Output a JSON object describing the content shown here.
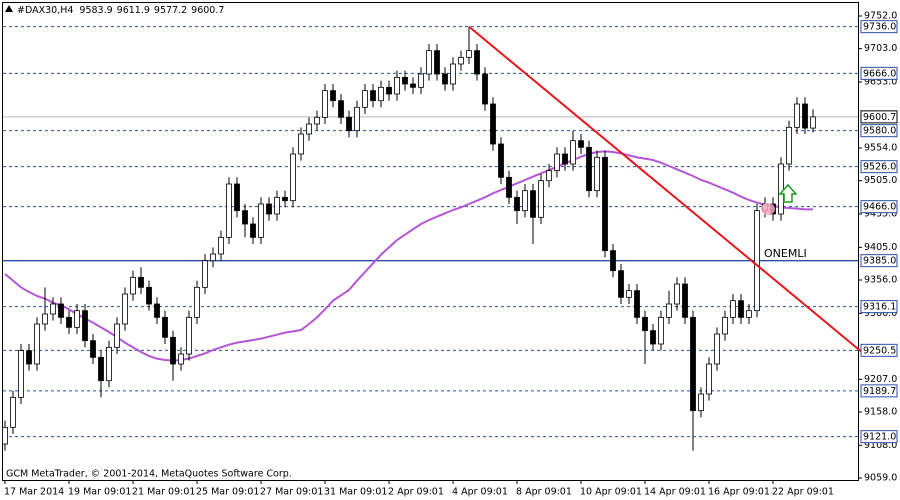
{
  "chart_data": {
    "type": "candlestick",
    "symbol": "#DAX30,H4",
    "footer": "GCM MetaTrader, © 2001-2014, MetaQuotes Software Corp.",
    "annotation": "ONEMLI",
    "categories": [
      "17 Mar 2014",
      null,
      null,
      null,
      null,
      null,
      null,
      null,
      "19 Mar 09:01",
      null,
      null,
      null,
      null,
      null,
      null,
      null,
      "21 Mar 09:01",
      null,
      null,
      null,
      null,
      null,
      null,
      null,
      "25 Mar 09:01",
      null,
      null,
      null,
      null,
      null,
      null,
      null,
      "27 Mar 09:01",
      null,
      null,
      null,
      null,
      null,
      null,
      null,
      "31 Mar 09:01",
      null,
      null,
      null,
      null,
      null,
      null,
      null,
      "2 Apr 09:01",
      null,
      null,
      null,
      null,
      null,
      null,
      null,
      "4 Apr 09:01",
      null,
      null,
      null,
      null,
      null,
      null,
      null,
      "8 Apr 09:01",
      null,
      null,
      null,
      null,
      null,
      null,
      null,
      "10 Apr 09:01",
      null,
      null,
      null,
      null,
      null,
      null,
      null,
      "14 Apr 09:01",
      null,
      null,
      null,
      null,
      null,
      null,
      null,
      "16 Apr 09:01",
      null,
      null,
      null,
      null,
      null,
      null,
      null,
      "22 Apr 09:01",
      null,
      null,
      null,
      null,
      null
    ],
    "open": [
      9110,
      9135,
      9180,
      9250,
      9230,
      9290,
      9305,
      9320,
      9300,
      9285,
      9310,
      9265,
      9240,
      9205,
      9255,
      9290,
      9335,
      9360,
      9345,
      9320,
      9300,
      9270,
      9230,
      9245,
      9300,
      9345,
      9385,
      9395,
      9420,
      9500,
      9460,
      9440,
      9420,
      9470,
      9455,
      9480,
      9475,
      9545,
      9575,
      9590,
      9600,
      9640,
      9625,
      9600,
      9580,
      9615,
      9640,
      9625,
      9645,
      9635,
      9660,
      9650,
      9645,
      9665,
      9700,
      9665,
      9650,
      9680,
      9690,
      9700,
      9665,
      9620,
      9560,
      9510,
      9480,
      9460,
      9490,
      9450,
      9505,
      9520,
      9545,
      9530,
      9565,
      9555,
      9490,
      9540,
      9400,
      9370,
      9330,
      9340,
      9300,
      9280,
      9260,
      9300,
      9320,
      9350,
      9300,
      9160,
      9185,
      9230,
      9275,
      9300,
      9325,
      9300,
      9310,
      9460,
      9470,
      9455,
      9530,
      9585,
      9620,
      9583.9
    ],
    "high": [
      9145,
      9190,
      9260,
      9260,
      9300,
      9345,
      9330,
      9330,
      9310,
      9320,
      9320,
      9275,
      9250,
      9265,
      9300,
      9345,
      9370,
      9375,
      9355,
      9330,
      9310,
      9280,
      9255,
      9310,
      9355,
      9395,
      9405,
      9430,
      9510,
      9510,
      9470,
      9450,
      9480,
      9480,
      9490,
      9490,
      9555,
      9585,
      9600,
      9610,
      9650,
      9650,
      9635,
      9610,
      9625,
      9650,
      9650,
      9655,
      9655,
      9670,
      9670,
      9660,
      9675,
      9710,
      9710,
      9675,
      9690,
      9700,
      9736,
      9710,
      9675,
      9630,
      9570,
      9520,
      9490,
      9500,
      9500,
      9515,
      9530,
      9555,
      9555,
      9580,
      9575,
      9565,
      9550,
      9550,
      9410,
      9380,
      9350,
      9350,
      9310,
      9290,
      9310,
      9340,
      9360,
      9360,
      9310,
      9195,
      9240,
      9285,
      9310,
      9335,
      9335,
      9320,
      9470,
      9480,
      9480,
      9540,
      9595,
      9630,
      9630,
      9611.9
    ],
    "low": [
      9100,
      9125,
      9170,
      9220,
      9220,
      9280,
      9295,
      9290,
      9275,
      9275,
      9255,
      9230,
      9180,
      9195,
      9245,
      9280,
      9325,
      9335,
      9310,
      9290,
      9260,
      9205,
      9220,
      9235,
      9290,
      9335,
      9375,
      9385,
      9410,
      9450,
      9420,
      9410,
      9410,
      9445,
      9445,
      9465,
      9465,
      9535,
      9565,
      9580,
      9590,
      9615,
      9590,
      9570,
      9570,
      9605,
      9615,
      9615,
      9625,
      9625,
      9640,
      9635,
      9635,
      9655,
      9655,
      9640,
      9640,
      9670,
      9680,
      9655,
      9610,
      9550,
      9500,
      9470,
      9440,
      9450,
      9410,
      9440,
      9495,
      9510,
      9520,
      9520,
      9545,
      9480,
      9480,
      9390,
      9360,
      9320,
      9320,
      9290,
      9230,
      9250,
      9250,
      9290,
      9310,
      9290,
      9100,
      9150,
      9175,
      9220,
      9265,
      9290,
      9290,
      9290,
      9300,
      9450,
      9445,
      9445,
      9520,
      9575,
      9575,
      9577.2
    ],
    "close": [
      9135,
      9180,
      9250,
      9230,
      9290,
      9305,
      9320,
      9300,
      9285,
      9310,
      9265,
      9240,
      9205,
      9255,
      9290,
      9335,
      9360,
      9345,
      9320,
      9300,
      9270,
      9230,
      9245,
      9300,
      9345,
      9385,
      9395,
      9420,
      9500,
      9460,
      9440,
      9420,
      9470,
      9455,
      9480,
      9475,
      9545,
      9575,
      9590,
      9600,
      9640,
      9625,
      9600,
      9580,
      9615,
      9640,
      9625,
      9645,
      9635,
      9660,
      9650,
      9645,
      9665,
      9700,
      9665,
      9650,
      9680,
      9690,
      9700,
      9665,
      9620,
      9560,
      9510,
      9480,
      9460,
      9490,
      9450,
      9505,
      9520,
      9545,
      9530,
      9565,
      9555,
      9490,
      9540,
      9400,
      9370,
      9330,
      9340,
      9300,
      9280,
      9260,
      9300,
      9320,
      9350,
      9300,
      9160,
      9185,
      9230,
      9275,
      9300,
      9325,
      9300,
      9310,
      9460,
      9470,
      9455,
      9530,
      9585,
      9620,
      9583.9,
      9600.7
    ],
    "ma": {
      "color": "#b455d6",
      "values": [
        9365,
        9355,
        9345,
        9338,
        9332,
        9328,
        9322,
        9318,
        9312,
        9305,
        9298,
        9292,
        9285,
        9278,
        9270,
        9262,
        9255,
        9248,
        9242,
        9238,
        9236,
        9235,
        9236,
        9238,
        9242,
        9246,
        9251,
        9255,
        9259,
        9262,
        9264,
        9266,
        9268,
        9271,
        9274,
        9277,
        9279,
        9281,
        9290,
        9300,
        9312,
        9325,
        9333,
        9341,
        9355,
        9368,
        9381,
        9394,
        9405,
        9416,
        9424,
        9432,
        9440,
        9446,
        9451,
        9456,
        9461,
        9465,
        9470,
        9475,
        9480,
        9486,
        9491,
        9496,
        9501,
        9506,
        9511,
        9516,
        9521,
        9526,
        9531,
        9536,
        9541,
        9545,
        9548,
        9549,
        9548,
        9546,
        9543,
        9540,
        9538,
        9536,
        9532,
        9527,
        9522,
        9517,
        9512,
        9506,
        9502,
        9497,
        9492,
        9487,
        9481,
        9476,
        9472,
        9469,
        9467,
        9465,
        9464,
        9463,
        9462,
        9462
      ]
    },
    "trend_line": {
      "color": "#e8161b",
      "start": [
        58,
        9736
      ],
      "end": [
        107,
        9249
      ]
    },
    "levels": [
      {
        "value": 9736,
        "label": "9736.0",
        "style": "dashed"
      },
      {
        "value": 9666,
        "label": "9666.0",
        "style": "dashed"
      },
      {
        "value": 9580,
        "label": "9580.0",
        "style": "dashed"
      },
      {
        "value": 9526,
        "label": "9526.0",
        "style": "dashed"
      },
      {
        "value": 9466,
        "label": "9466.0",
        "style": "dashed"
      },
      {
        "value": 9385,
        "label": "9385.0",
        "style": "solid"
      },
      {
        "value": 9316.1,
        "label": "9316.1",
        "style": "dashed"
      },
      {
        "value": 9250.5,
        "label": "9250.5",
        "style": "dashed"
      },
      {
        "value": 9189.7,
        "label": "9189.7",
        "style": "dashed"
      },
      {
        "value": 9121,
        "label": "9121.0",
        "style": "dashed"
      }
    ],
    "level_color": "#2a4fa8",
    "current": {
      "value": 9600.7,
      "label": "9600.7"
    },
    "ylim": [
      9056,
      9771.5
    ],
    "yticks": [
      {
        "value": 9752,
        "label": "9752.0"
      },
      {
        "value": 9703,
        "label": "9703.0"
      },
      {
        "value": 9653,
        "label": "9653.0"
      },
      {
        "value": 9554,
        "label": "9554.0"
      },
      {
        "value": 9505,
        "label": "9505.0"
      },
      {
        "value": 9455,
        "label": "9455.0"
      },
      {
        "value": 9405,
        "label": "9405.0"
      },
      {
        "value": 9356,
        "label": "9356.0"
      },
      {
        "value": 9306,
        "label": "9306.0"
      },
      {
        "value": 9207,
        "label": "9207.0"
      },
      {
        "value": 9158,
        "label": "9158.0"
      },
      {
        "value": 9108,
        "label": "9108.0"
      },
      {
        "value": 9059,
        "label": "9059.0"
      }
    ]
  }
}
